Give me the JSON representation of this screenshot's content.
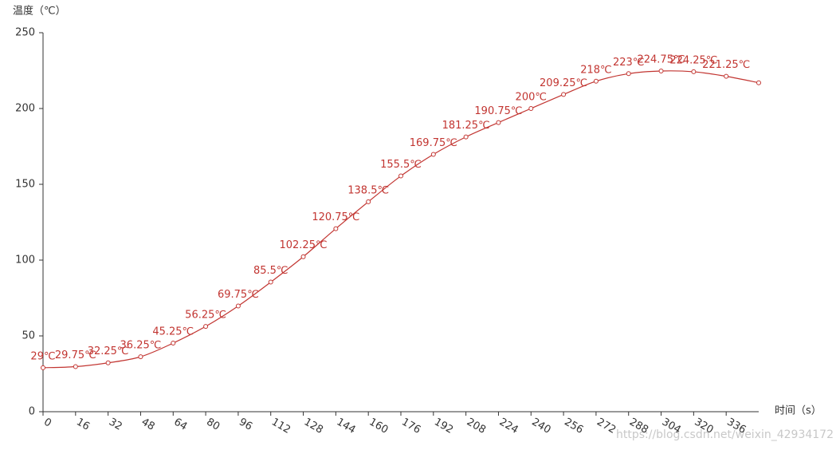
{
  "chart_data": {
    "type": "line",
    "y_axis_label": "温度（℃）",
    "x_axis_label": "时间（s）",
    "watermark": "https://blog.csdn.net/weixin_42934172",
    "x": [
      0,
      16,
      32,
      48,
      64,
      80,
      96,
      112,
      128,
      144,
      160,
      176,
      192,
      208,
      224,
      240,
      256,
      272,
      288,
      304,
      320,
      336,
      352
    ],
    "series": [
      {
        "name": "温度",
        "color": "#c23531",
        "values": [
          29,
          29.75,
          32.25,
          36.25,
          45.25,
          56.25,
          69.75,
          85.5,
          102.25,
          120.75,
          138.5,
          155.5,
          169.75,
          181.25,
          190.75,
          200,
          209.25,
          218,
          223,
          224.75,
          224.25,
          221.25,
          217
        ],
        "value_labels": [
          "29℃",
          "29.75℃",
          "32.25℃",
          "36.25℃",
          "45.25℃",
          "56.25℃",
          "69.75℃",
          "85.5℃",
          "102.25℃",
          "120.75℃",
          "138.5℃",
          "155.5℃",
          "169.75℃",
          "181.25℃",
          "190.75℃",
          "200℃",
          "209.25℃",
          "218℃",
          "223℃",
          "224.75℃",
          "224.25℃",
          "221.25℃",
          null
        ]
      }
    ],
    "xlim": [
      0,
      352
    ],
    "xticks": [
      0,
      16,
      32,
      48,
      64,
      80,
      96,
      112,
      128,
      144,
      160,
      176,
      192,
      208,
      224,
      240,
      256,
      272,
      288,
      304,
      320,
      336
    ],
    "ylim": [
      0,
      250
    ],
    "yticks": [
      0,
      50,
      100,
      150,
      200,
      250
    ],
    "grid": false
  }
}
